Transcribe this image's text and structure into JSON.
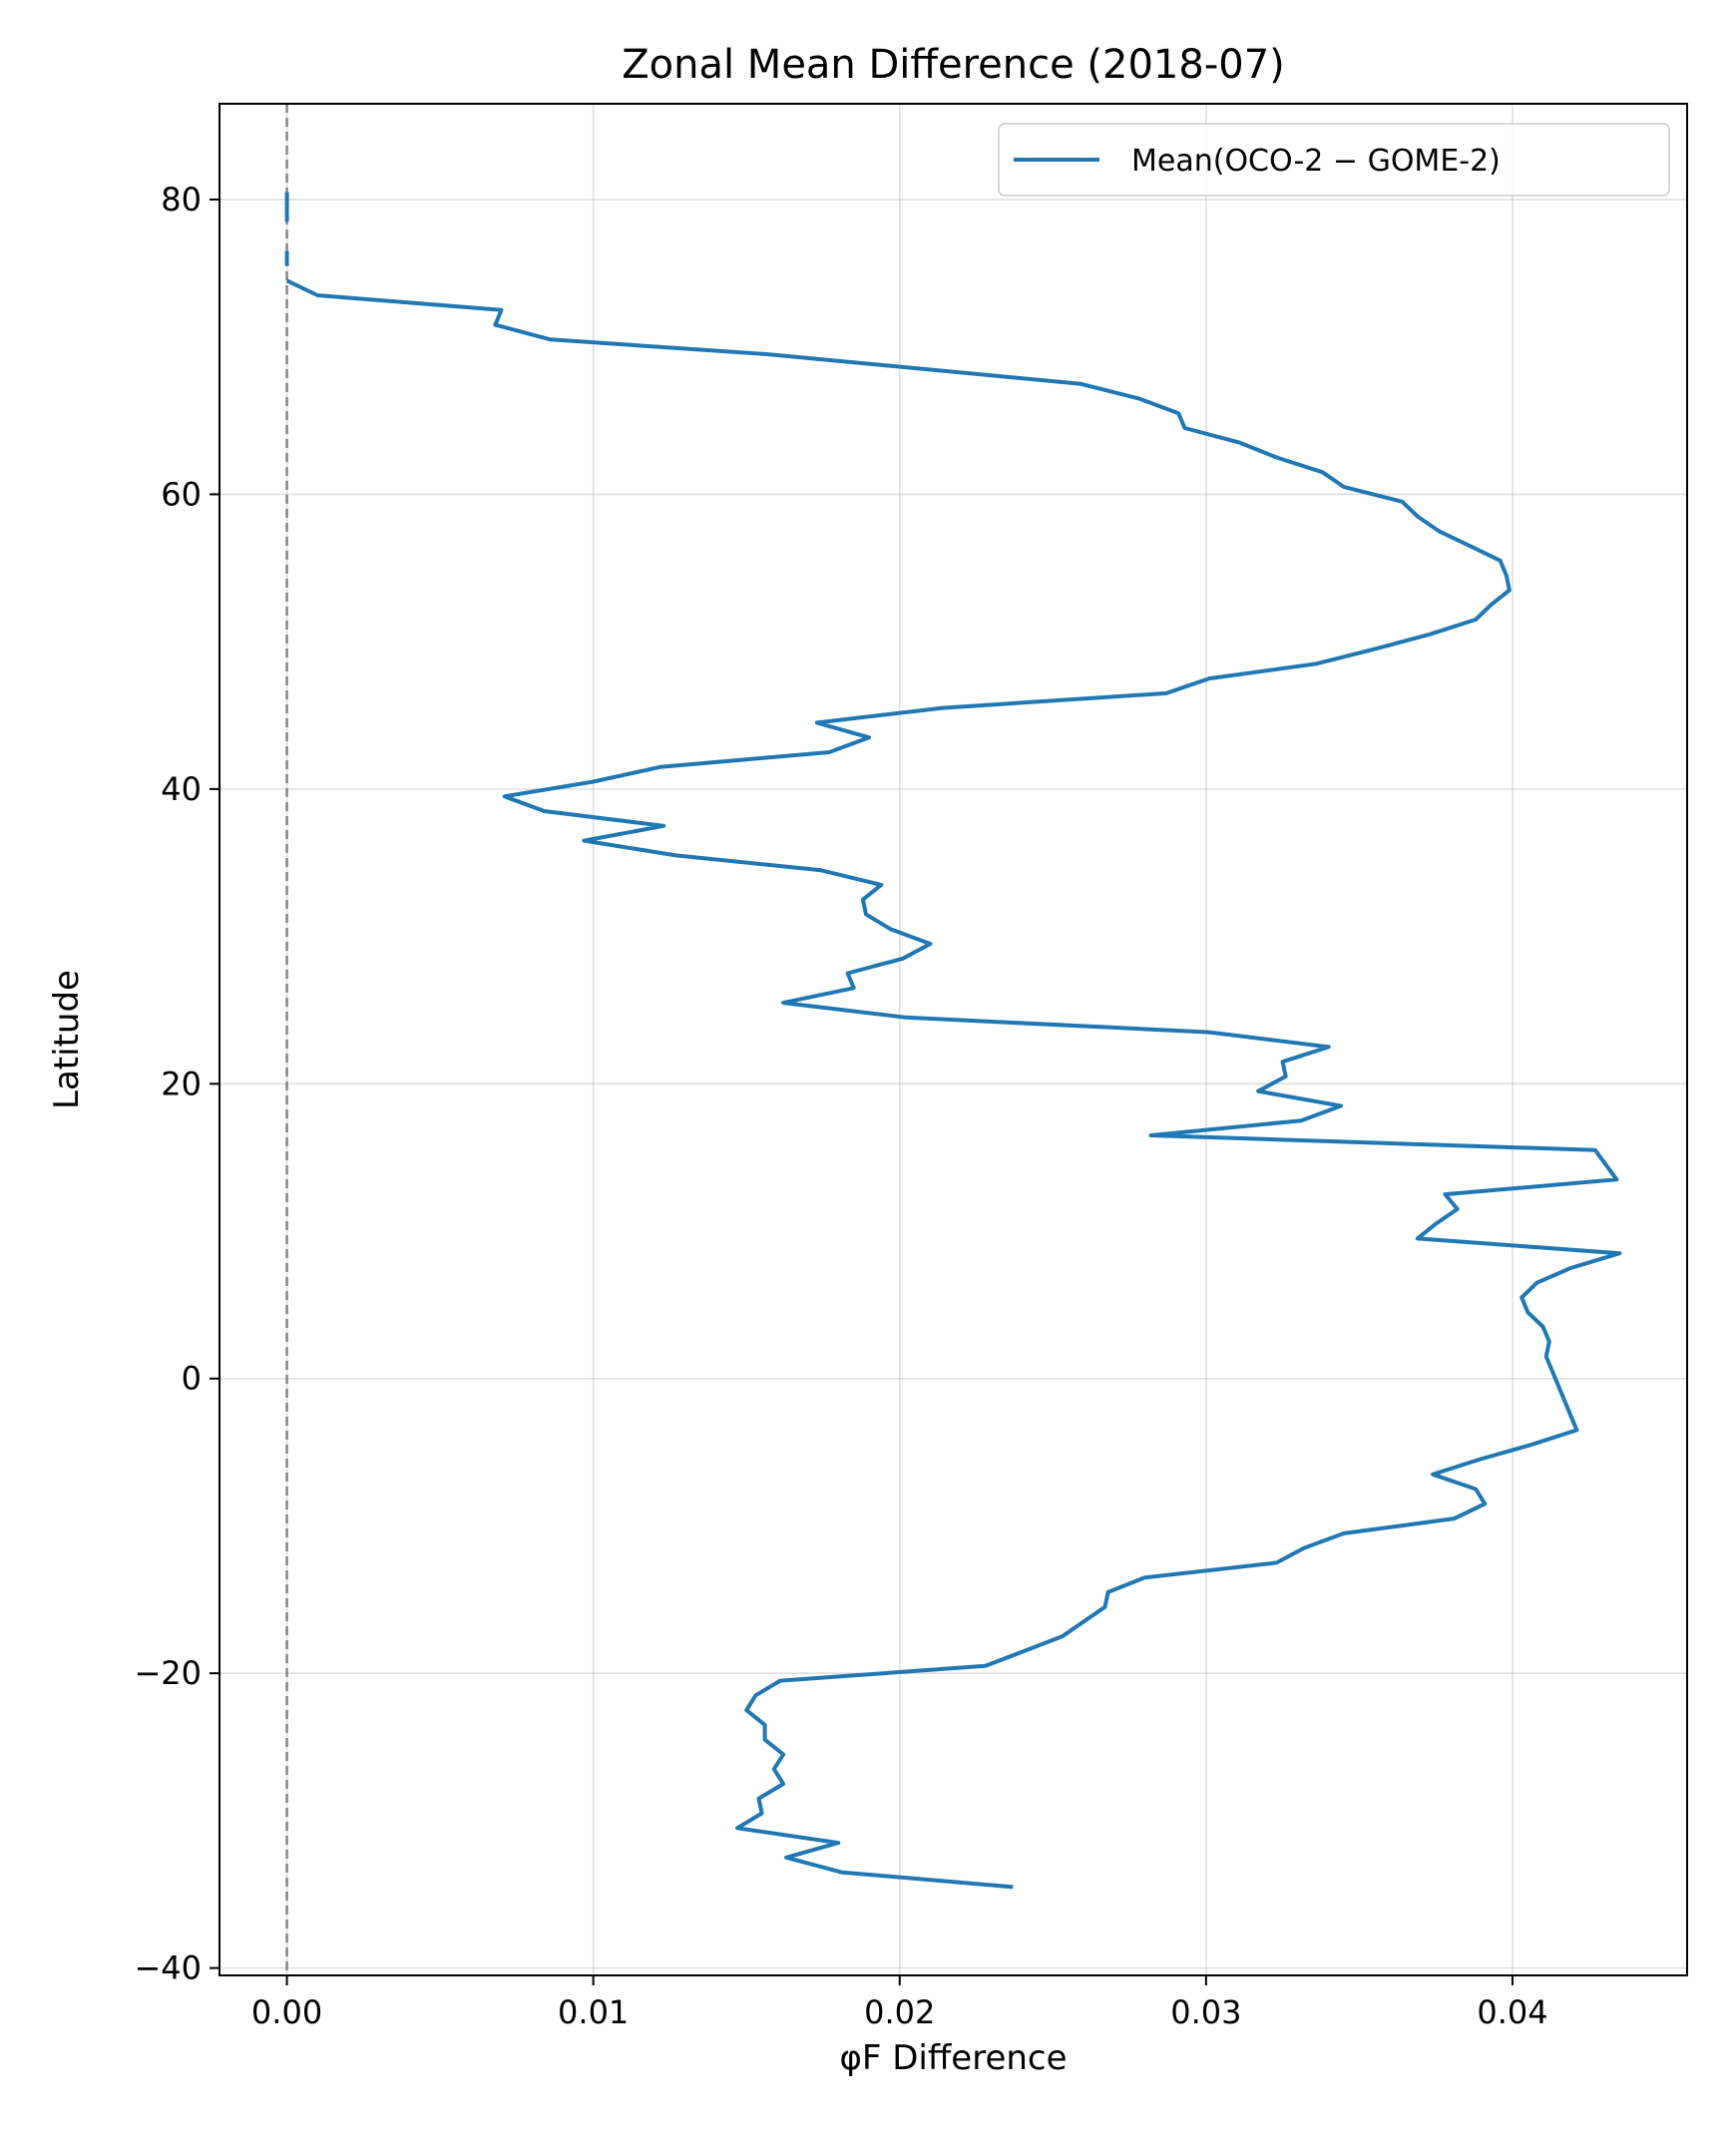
{
  "chart_data": {
    "type": "line",
    "title": "Zonal Mean Difference  (2018-07)",
    "xlabel": "φF Difference",
    "ylabel": "Latitude",
    "xlim": [
      -0.0022,
      0.0457
    ],
    "ylim": [
      -40.5,
      86.5
    ],
    "xticks": [
      0.0,
      0.01,
      0.02,
      0.03,
      0.04
    ],
    "xtick_labels": [
      "0.00",
      "0.01",
      "0.02",
      "0.03",
      "0.04"
    ],
    "yticks": [
      -40,
      -20,
      0,
      20,
      40,
      60,
      80
    ],
    "ytick_labels": [
      "−40",
      "−20",
      "0",
      "20",
      "40",
      "60",
      "80"
    ],
    "grid": true,
    "legend_position": "upper-right",
    "reference_line": {
      "x": 0.0,
      "style": "dashed",
      "color": "#808080"
    },
    "series": [
      {
        "name": "Mean(OCO-2 − GOME-2)",
        "color": "#1f77b4",
        "segments": [
          {
            "x": [
              0.0,
              0.0
            ],
            "y": [
              80.5,
              78.5
            ]
          },
          {
            "x": [
              0.0,
              0.0
            ],
            "y": [
              76.5,
              75.5
            ]
          },
          {
            "x": [
              0.0,
              0.001,
              0.007,
              0.0068,
              0.0086,
              0.0157,
              0.0259,
              0.0278,
              0.0291,
              0.0293,
              0.0311,
              0.0323,
              0.0338,
              0.0345,
              0.0364,
              0.0369,
              0.0376,
              0.0386,
              0.0396,
              0.0398,
              0.0399,
              0.0393,
              0.0388,
              0.0373,
              0.0355,
              0.0336,
              0.0301,
              0.0287,
              0.0214,
              0.0173,
              0.019,
              0.0177,
              0.0122,
              0.01,
              0.0071,
              0.0084,
              0.0123,
              0.0097,
              0.0127,
              0.0174,
              0.0194,
              0.0188,
              0.0189,
              0.0197,
              0.021,
              0.0201,
              0.0183,
              0.0185,
              0.0162,
              0.0202,
              0.0301,
              0.034,
              0.0325,
              0.0326,
              0.0317,
              0.0344,
              0.0331,
              0.0282,
              0.0427,
              0.0434,
              0.0378,
              0.0382,
              0.0375,
              0.0369,
              0.0435,
              0.0419,
              0.0408,
              0.0403,
              0.0405,
              0.041,
              0.0412,
              0.0411,
              0.0413,
              0.0415,
              0.0421,
              0.0406,
              0.0389,
              0.0374,
              0.0388,
              0.0391,
              0.0381,
              0.0345,
              0.0332,
              0.0323,
              0.028,
              0.0268,
              0.0267,
              0.026,
              0.0253,
              0.0228,
              0.0161,
              0.0153,
              0.015,
              0.0156,
              0.0156,
              0.0162,
              0.0159,
              0.0162,
              0.0154,
              0.0155,
              0.0147,
              0.018,
              0.0163,
              0.0181,
              0.0237
            ],
            "y": [
              74.5,
              73.5,
              72.5,
              71.5,
              70.5,
              69.5,
              67.5,
              66.5,
              65.5,
              64.5,
              63.5,
              62.5,
              61.5,
              60.5,
              59.5,
              58.5,
              57.5,
              56.5,
              55.5,
              54.5,
              53.5,
              52.5,
              51.5,
              50.5,
              49.5,
              48.5,
              47.5,
              46.5,
              45.5,
              44.5,
              43.5,
              42.5,
              41.5,
              40.5,
              39.5,
              38.5,
              37.5,
              36.5,
              35.5,
              34.5,
              33.5,
              32.5,
              31.5,
              30.5,
              29.5,
              28.5,
              27.5,
              26.5,
              25.5,
              24.5,
              23.5,
              22.5,
              21.5,
              20.5,
              19.5,
              18.5,
              17.5,
              16.5,
              15.5,
              13.5,
              12.5,
              11.5,
              10.5,
              9.5,
              8.5,
              7.5,
              6.5,
              5.5,
              4.5,
              3.5,
              2.5,
              1.5,
              0.5,
              -0.5,
              -3.5,
              -4.5,
              -5.5,
              -6.5,
              -7.5,
              -8.5,
              -9.5,
              -10.5,
              -11.5,
              -12.5,
              -13.5,
              -14.5,
              -15.5,
              -16.5,
              -17.5,
              -19.5,
              -20.5,
              -21.5,
              -22.5,
              -23.5,
              -24.5,
              -25.5,
              -26.5,
              -27.5,
              -28.5,
              -29.5,
              -30.5,
              -31.5,
              -32.5,
              -33.5,
              -34.5
            ]
          }
        ]
      }
    ]
  }
}
